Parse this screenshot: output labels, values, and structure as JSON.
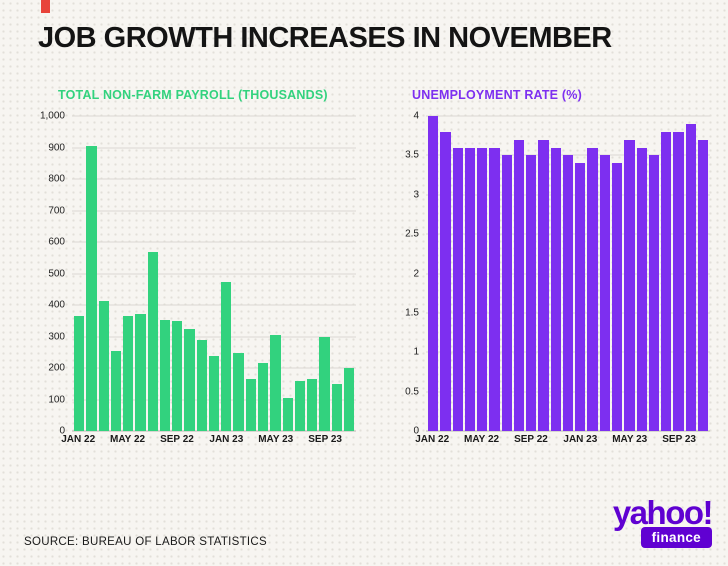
{
  "headline": "JOB GROWTH INCREASES IN NOVEMBER",
  "source_text": "SOURCE: BUREAU OF LABOR STATISTICS",
  "logo": {
    "brand": "yahoo!",
    "product": "finance"
  },
  "colors": {
    "background": "#f7f5f1",
    "headline": "#141414",
    "green": "#32d27e",
    "purple": "#7d2ff0",
    "logo_purple": "#5f01d1",
    "accent_red": "#e8433a"
  },
  "chart_data": [
    {
      "type": "bar",
      "title": "TOTAL NON-FARM PAYROLL (THOUSANDS)",
      "color": "#32d27e",
      "grid": true,
      "ylim": [
        0,
        1000
      ],
      "x": [
        "JAN 22",
        "FEB 22",
        "MAR 22",
        "APR 22",
        "MAY 22",
        "JUN 22",
        "JUL 22",
        "AUG 22",
        "SEP 22",
        "OCT 22",
        "NOV 22",
        "DEC 22",
        "JAN 23",
        "FEB 23",
        "MAR 23",
        "APR 23",
        "MAY 23",
        "JUN 23",
        "JUL 23",
        "AUG 23",
        "SEP 23",
        "OCT 23",
        "NOV 23"
      ],
      "values": [
        364,
        904,
        414,
        254,
        364,
        370,
        568,
        352,
        350,
        324,
        290,
        239,
        472,
        248,
        165,
        217,
        306,
        105,
        160,
        165,
        297,
        150,
        199
      ],
      "yticks": [
        {
          "value": 0,
          "label": "0"
        },
        {
          "value": 100,
          "label": "100"
        },
        {
          "value": 200,
          "label": "200"
        },
        {
          "value": 300,
          "label": "300"
        },
        {
          "value": 400,
          "label": "400"
        },
        {
          "value": 500,
          "label": "500"
        },
        {
          "value": 600,
          "label": "600"
        },
        {
          "value": 700,
          "label": "700"
        },
        {
          "value": 800,
          "label": "800"
        },
        {
          "value": 900,
          "label": "900"
        },
        {
          "value": 1000,
          "label": "1,000"
        }
      ],
      "xtick_indices": [
        0,
        4,
        8,
        12,
        16,
        20
      ]
    },
    {
      "type": "bar",
      "title": "UNEMPLOYMENT RATE (%)",
      "color": "#7d2ff0",
      "grid": true,
      "ylim": [
        0,
        4
      ],
      "x": [
        "JAN 22",
        "FEB 22",
        "MAR 22",
        "APR 22",
        "MAY 22",
        "JUN 22",
        "JUL 22",
        "AUG 22",
        "SEP 22",
        "OCT 22",
        "NOV 22",
        "DEC 22",
        "JAN 23",
        "FEB 23",
        "MAR 23",
        "APR 23",
        "MAY 23",
        "JUN 23",
        "JUL 23",
        "AUG 23",
        "SEP 23",
        "OCT 23",
        "NOV 23"
      ],
      "values": [
        4.0,
        3.8,
        3.6,
        3.6,
        3.6,
        3.6,
        3.5,
        3.7,
        3.5,
        3.7,
        3.6,
        3.5,
        3.4,
        3.6,
        3.5,
        3.4,
        3.7,
        3.6,
        3.5,
        3.8,
        3.8,
        3.9,
        3.7
      ],
      "yticks": [
        {
          "value": 0,
          "label": "0"
        },
        {
          "value": 0.5,
          "label": "0.5"
        },
        {
          "value": 1,
          "label": "1"
        },
        {
          "value": 1.5,
          "label": "1.5"
        },
        {
          "value": 2,
          "label": "2"
        },
        {
          "value": 2.5,
          "label": "2.5"
        },
        {
          "value": 3,
          "label": "3"
        },
        {
          "value": 3.5,
          "label": "3.5"
        },
        {
          "value": 4,
          "label": "4"
        }
      ],
      "xtick_indices": [
        0,
        4,
        8,
        12,
        16,
        20
      ]
    }
  ]
}
